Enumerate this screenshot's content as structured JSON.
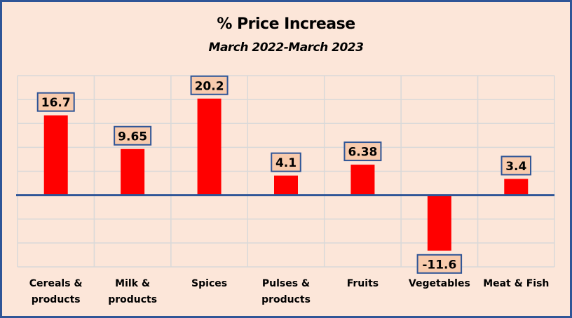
{
  "chart_data": {
    "type": "bar",
    "title": "% Price Increase",
    "subtitle": "March 2022-March 2023",
    "xlabel": "",
    "ylabel": "",
    "categories": [
      "Cereals & products",
      "Milk & products",
      "Spices",
      "Pulses & products",
      "Fruits",
      "Vegetables",
      "Meat & Fish"
    ],
    "category_lines": [
      [
        "Cereals &",
        "products"
      ],
      [
        "Milk &",
        "products"
      ],
      [
        "Spices"
      ],
      [
        "Pulses &",
        "products"
      ],
      [
        "Fruits"
      ],
      [
        "Vegetables"
      ],
      [
        "Meat & Fish"
      ]
    ],
    "values": [
      16.7,
      9.65,
      20.2,
      4.1,
      6.38,
      -11.6,
      3.4
    ],
    "labels": [
      "16.7",
      "9.65",
      "20.2",
      "4.1",
      "6.38",
      "-11.6",
      "3.4"
    ],
    "ylim": [
      -15,
      25
    ],
    "grid": true,
    "grid_step": 5,
    "legend": "none",
    "colors": {
      "bar": "#ff0000",
      "zero_line": "#2f5597",
      "grid": "#d9d9d9",
      "background": "#fce6d9",
      "label_fill": "#f8cbad",
      "label_border": "#2f5597",
      "frame": "#2f5597"
    }
  }
}
